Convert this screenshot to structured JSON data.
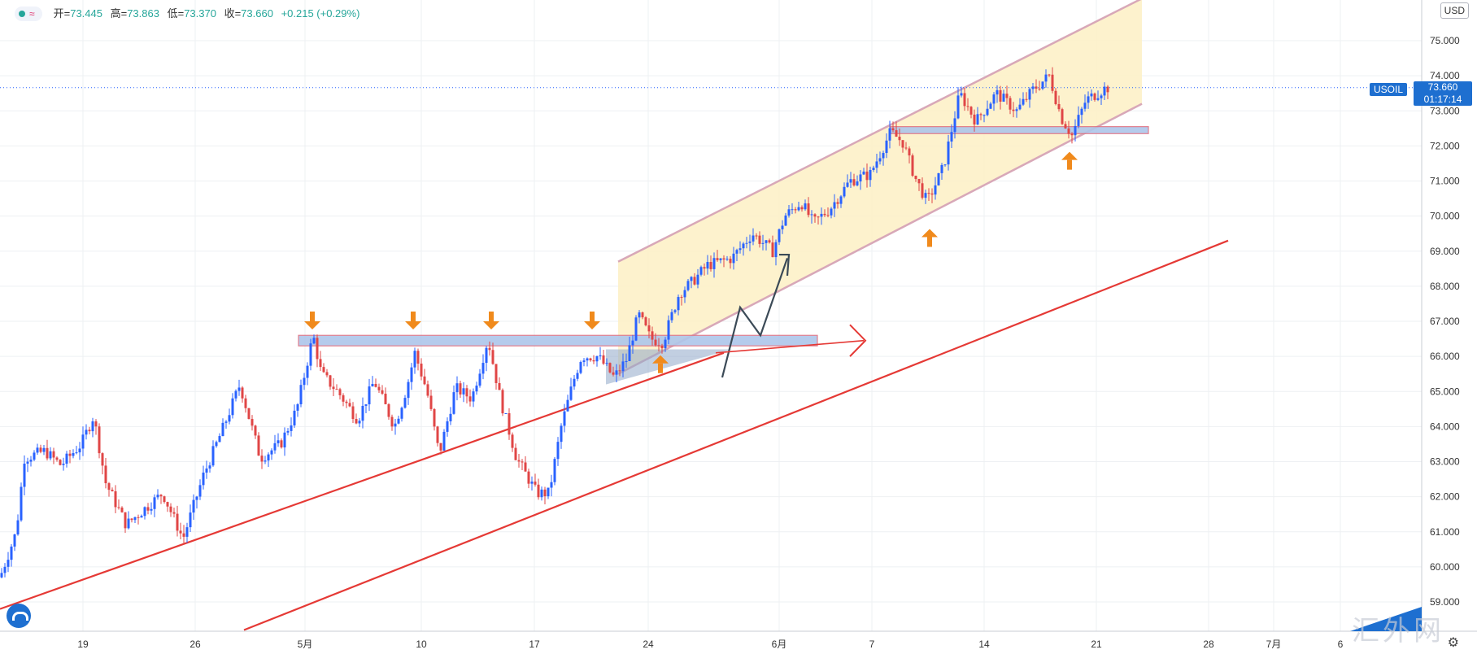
{
  "header": {
    "open_label": "开=",
    "open": "73.445",
    "high_label": "高=",
    "high": "73.863",
    "low_label": "低=",
    "low": "73.370",
    "close_label": "收=",
    "close": "73.660",
    "change": "+0.215 (+0.29%)",
    "approx_symbol": "≈"
  },
  "currency": "USD",
  "symbol_badge": "USOIL",
  "last_price": "73.660",
  "countdown": "01:17:14",
  "watermark": "汇外网",
  "colors": {
    "up": "#2962ff",
    "down": "#e04646",
    "trendline": "#e53935",
    "channel_fill": "#fdf0c4",
    "channel_border": "#d8a8b8",
    "zone_fill": "#aec6ea",
    "zone_border": "#e07080",
    "arrow": "#f08a1c",
    "grid": "#eef0f3",
    "axis_text": "#333333"
  },
  "chart_data": {
    "type": "candlestick",
    "symbol": "USOIL",
    "x_ticks": [
      "19",
      "26",
      "5月",
      "10",
      "17",
      "24",
      "6月",
      "7",
      "14",
      "21",
      "28",
      "7月",
      "6"
    ],
    "y_ticks": [
      59.0,
      60.0,
      61.0,
      62.0,
      63.0,
      64.0,
      65.0,
      66.0,
      67.0,
      68.0,
      69.0,
      70.0,
      71.0,
      72.0,
      73.0,
      74.0,
      75.0
    ],
    "ylim": [
      58.2,
      76.2
    ],
    "last_price": 73.66,
    "waypoints": [
      [
        0,
        59.7
      ],
      [
        20,
        61.0
      ],
      [
        30,
        63.1
      ],
      [
        55,
        63.3
      ],
      [
        75,
        62.9
      ],
      [
        100,
        63.5
      ],
      [
        115,
        64.3
      ],
      [
        130,
        62.4
      ],
      [
        155,
        61.2
      ],
      [
        175,
        61.6
      ],
      [
        200,
        62.1
      ],
      [
        225,
        60.8
      ],
      [
        250,
        62.6
      ],
      [
        275,
        64.0
      ],
      [
        295,
        65.2
      ],
      [
        320,
        63.1
      ],
      [
        345,
        63.5
      ],
      [
        365,
        64.5
      ],
      [
        385,
        66.6
      ],
      [
        395,
        65.5
      ],
      [
        415,
        65.0
      ],
      [
        440,
        64.2
      ],
      [
        460,
        65.3
      ],
      [
        485,
        64.0
      ],
      [
        500,
        65.1
      ],
      [
        510,
        66.1
      ],
      [
        525,
        65.0
      ],
      [
        540,
        63.2
      ],
      [
        560,
        65.1
      ],
      [
        580,
        64.8
      ],
      [
        600,
        66.5
      ],
      [
        615,
        64.8
      ],
      [
        635,
        63.1
      ],
      [
        660,
        62.1
      ],
      [
        675,
        62.1
      ],
      [
        690,
        64.0
      ],
      [
        705,
        65.3
      ],
      [
        715,
        66.0
      ],
      [
        735,
        66.0
      ],
      [
        755,
        65.4
      ],
      [
        770,
        65.9
      ],
      [
        785,
        67.2
      ],
      [
        800,
        66.5
      ],
      [
        815,
        66.4
      ],
      [
        835,
        67.8
      ],
      [
        850,
        68.1
      ],
      [
        870,
        68.6
      ],
      [
        900,
        68.8
      ],
      [
        925,
        69.5
      ],
      [
        950,
        69.0
      ],
      [
        965,
        70.0
      ],
      [
        985,
        70.4
      ],
      [
        1000,
        69.8
      ],
      [
        1020,
        70.2
      ],
      [
        1045,
        71.0
      ],
      [
        1070,
        71.2
      ],
      [
        1095,
        72.4
      ],
      [
        1110,
        72.1
      ],
      [
        1125,
        71.1
      ],
      [
        1140,
        70.4
      ],
      [
        1160,
        71.4
      ],
      [
        1180,
        73.5
      ],
      [
        1200,
        72.7
      ],
      [
        1225,
        73.5
      ],
      [
        1250,
        73.0
      ],
      [
        1270,
        73.6
      ],
      [
        1290,
        74.0
      ],
      [
        1305,
        72.8
      ],
      [
        1318,
        72.3
      ],
      [
        1335,
        73.3
      ],
      [
        1360,
        73.66
      ]
    ],
    "horizontal_zones": [
      {
        "from": 66.3,
        "to": 66.6,
        "x_start": 367,
        "x_end": 1005
      },
      {
        "from": 72.35,
        "to": 72.55,
        "x_start": 1095,
        "x_end": 1412
      }
    ],
    "trendlines": [
      {
        "points": [
          [
            0,
            58.8
          ],
          [
            890,
            66.1
          ]
        ]
      },
      {
        "points": [
          [
            300,
            58.2
          ],
          [
            1510,
            69.3
          ]
        ]
      }
    ],
    "channel": {
      "upper": [
        [
          760,
          68.7
        ],
        [
          1404,
          76.2
        ]
      ],
      "lower": [
        [
          760,
          65.5
        ],
        [
          1404,
          73.2
        ]
      ]
    },
    "arrows_down": [
      [
        384,
        67.0
      ],
      [
        508,
        67.0
      ],
      [
        604,
        67.0
      ],
      [
        728,
        67.0
      ]
    ],
    "arrows_up": [
      [
        812,
        65.8
      ],
      [
        1143,
        69.4
      ],
      [
        1315,
        71.6
      ]
    ]
  }
}
